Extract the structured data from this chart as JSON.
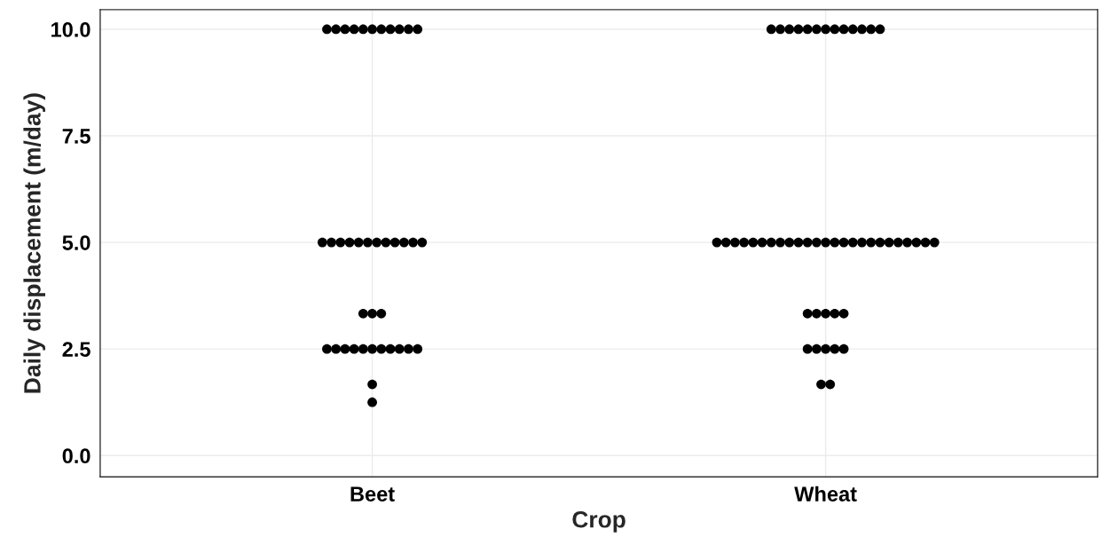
{
  "chart_data": {
    "type": "scatter",
    "xlabel": "Crop",
    "ylabel": "Daily displacement (m/day)",
    "categories": [
      "Beet",
      "Wheat"
    ],
    "series": [
      {
        "color": "#000000",
        "x": [
          "Beet",
          "Beet",
          "Beet",
          "Beet",
          "Beet",
          "Beet",
          "Beet",
          "Beet",
          "Beet",
          "Beet",
          "Beet",
          "Beet",
          "Beet",
          "Beet",
          "Beet",
          "Beet",
          "Beet",
          "Beet",
          "Beet",
          "Beet",
          "Beet",
          "Beet",
          "Beet",
          "Beet",
          "Beet",
          "Beet",
          "Beet",
          "Beet",
          "Beet",
          "Beet",
          "Beet",
          "Beet",
          "Beet",
          "Beet",
          "Beet",
          "Beet",
          "Beet",
          "Beet",
          "Beet",
          "Wheat",
          "Wheat",
          "Wheat",
          "Wheat",
          "Wheat",
          "Wheat",
          "Wheat",
          "Wheat",
          "Wheat",
          "Wheat",
          "Wheat",
          "Wheat",
          "Wheat",
          "Wheat",
          "Wheat",
          "Wheat",
          "Wheat",
          "Wheat",
          "Wheat",
          "Wheat",
          "Wheat",
          "Wheat",
          "Wheat",
          "Wheat",
          "Wheat",
          "Wheat",
          "Wheat",
          "Wheat",
          "Wheat",
          "Wheat",
          "Wheat",
          "Wheat",
          "Wheat",
          "Wheat",
          "Wheat",
          "Wheat",
          "Wheat",
          "Wheat",
          "Wheat",
          "Wheat",
          "Wheat",
          "Wheat",
          "Wheat",
          "Wheat",
          "Wheat",
          "Wheat",
          "Wheat",
          "Wheat",
          "Wheat",
          "Wheat"
        ],
        "values": [
          10,
          10,
          10,
          10,
          10,
          10,
          10,
          10,
          10,
          10,
          10,
          5,
          5,
          5,
          5,
          5,
          5,
          5,
          5,
          5,
          5,
          5,
          5,
          3.33,
          3.33,
          3.33,
          2.5,
          2.5,
          2.5,
          2.5,
          2.5,
          2.5,
          2.5,
          2.5,
          2.5,
          2.5,
          2.5,
          1.67,
          1.25,
          10,
          10,
          10,
          10,
          10,
          10,
          10,
          10,
          10,
          10,
          10,
          10,
          10,
          5,
          5,
          5,
          5,
          5,
          5,
          5,
          5,
          5,
          5,
          5,
          5,
          5,
          5,
          5,
          5,
          5,
          5,
          5,
          5,
          5,
          5,
          5,
          5,
          5,
          3.33,
          3.33,
          3.33,
          3.33,
          3.33,
          2.5,
          2.5,
          2.5,
          2.5,
          2.5,
          1.67,
          1.67
        ]
      }
    ],
    "ylim": [
      -0.5,
      10.46
    ],
    "yticks": [
      {
        "value": 0,
        "label": "0.0"
      },
      {
        "value": 2.5,
        "label": "2.5"
      },
      {
        "value": 5,
        "label": "5.0"
      },
      {
        "value": 7.5,
        "label": "7.5"
      },
      {
        "value": 10,
        "label": "10.0"
      }
    ],
    "grid": true,
    "marker": "circle"
  }
}
